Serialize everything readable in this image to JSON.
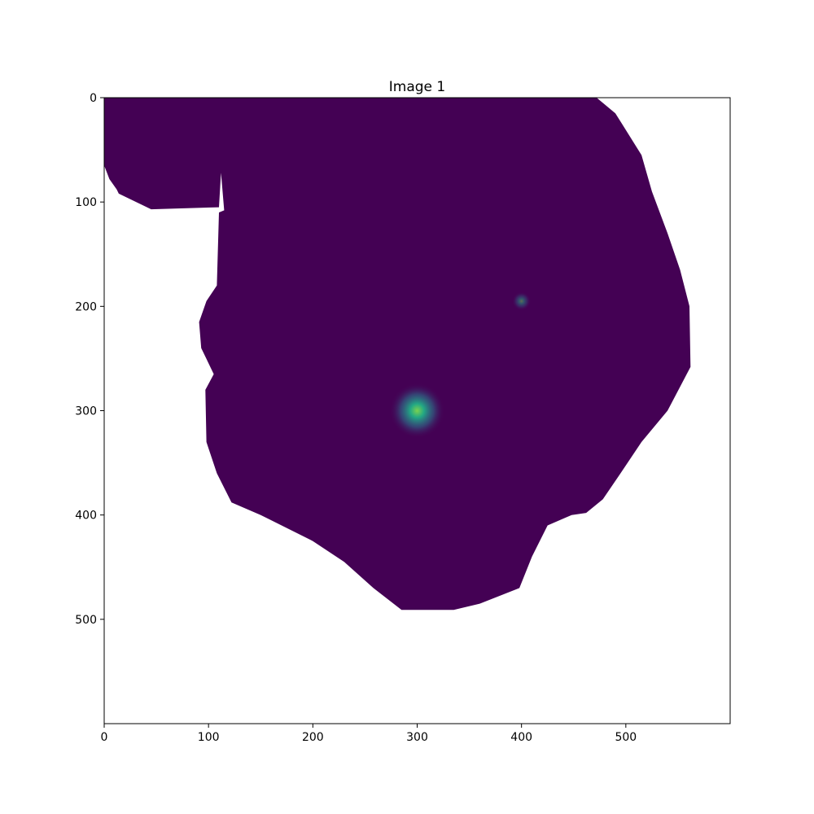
{
  "chart_data": {
    "type": "heatmap",
    "title": "Image 1",
    "xlabel": "",
    "ylabel": "",
    "xlim": [
      0,
      600
    ],
    "ylim": [
      600,
      0
    ],
    "y_axis_inverted": true,
    "x_ticks": [
      0,
      100,
      200,
      300,
      400,
      500
    ],
    "y_ticks": [
      0,
      100,
      200,
      300,
      400,
      500
    ],
    "x_tick_labels": [
      "0",
      "100",
      "200",
      "300",
      "400",
      "500"
    ],
    "y_tick_labels": [
      "0",
      "100",
      "200",
      "300",
      "400",
      "500"
    ],
    "colormap": "viridis",
    "background_value_color": "#440154",
    "masked_color": "#ffffff",
    "hotspots": [
      {
        "x": 300,
        "y": 300,
        "intensity": 1.0
      },
      {
        "x": 400,
        "y": 195,
        "intensity": 0.25
      }
    ],
    "data_region_outline": [
      [
        0,
        0
      ],
      [
        472,
        0
      ],
      [
        490,
        15
      ],
      [
        515,
        55
      ],
      [
        525,
        90
      ],
      [
        540,
        130
      ],
      [
        552,
        165
      ],
      [
        561,
        200
      ],
      [
        562,
        258
      ],
      [
        540,
        300
      ],
      [
        515,
        330
      ],
      [
        495,
        360
      ],
      [
        478,
        385
      ],
      [
        462,
        398
      ],
      [
        448,
        400
      ],
      [
        425,
        410
      ],
      [
        410,
        440
      ],
      [
        398,
        470
      ],
      [
        360,
        485
      ],
      [
        335,
        491
      ],
      [
        285,
        491
      ],
      [
        258,
        470
      ],
      [
        230,
        445
      ],
      [
        200,
        425
      ],
      [
        150,
        400
      ],
      [
        122,
        388
      ],
      [
        108,
        360
      ],
      [
        98,
        330
      ],
      [
        97,
        280
      ],
      [
        105,
        265
      ],
      [
        93,
        240
      ],
      [
        91,
        215
      ],
      [
        98,
        195
      ],
      [
        108,
        180
      ],
      [
        110,
        110
      ],
      [
        115,
        108
      ],
      [
        112,
        72
      ],
      [
        110,
        105
      ],
      [
        45,
        107
      ],
      [
        14,
        92
      ],
      [
        12,
        88
      ],
      [
        5,
        78
      ],
      [
        0,
        65
      ]
    ]
  }
}
